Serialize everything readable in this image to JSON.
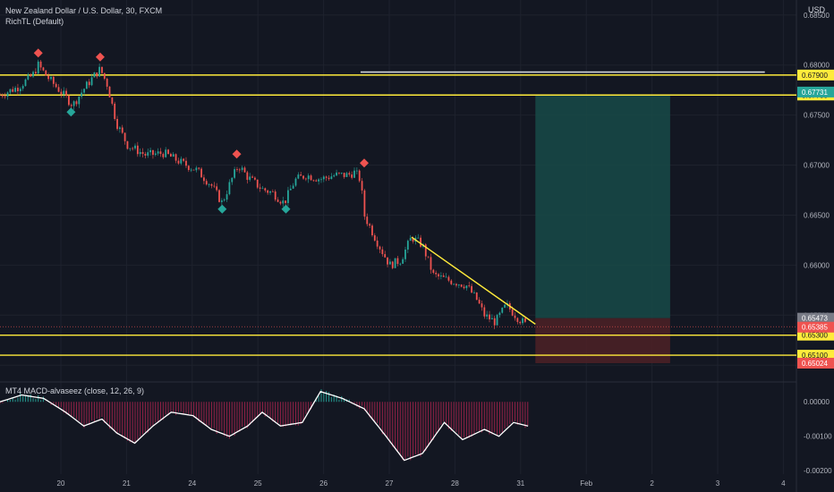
{
  "header": {
    "symbol_title": "New Zealand Dollar / U.S. Dollar, 30, FXCM",
    "indicator": "RichTL (Default)",
    "currency": "USD"
  },
  "oscillator": {
    "legend": "MT4 MACD-alvaseez (close, 12, 26, 9)"
  },
  "colors": {
    "background": "#131722",
    "grid": "#1e222d",
    "up": "#26a69a",
    "down": "#ef5350",
    "level_line": "#ffeb3b",
    "profit_zone": "#184a48",
    "loss_zone": "#4a2026",
    "pivot_high": "#ef5350",
    "pivot_low": "#26a69a"
  },
  "chart_data": {
    "type": "candlestick",
    "ylim": [
      0.6485,
      0.6865
    ],
    "y_ticks": [
      "0.68500",
      "0.68000",
      "0.67500",
      "0.67000",
      "0.66500",
      "0.66000",
      "0.65500",
      "0.65000"
    ],
    "x_ticks": [
      "20",
      "21",
      "24",
      "25",
      "26",
      "27",
      "28",
      "31",
      "Feb",
      "2",
      "3",
      "4"
    ],
    "horizontal_levels": [
      {
        "value": 0.679,
        "label": "0.67900"
      },
      {
        "value": 0.677,
        "label": "0.67700"
      },
      {
        "value": 0.653,
        "label": "0.65300"
      },
      {
        "value": 0.651,
        "label": "0.65100"
      }
    ],
    "price_labels": [
      {
        "value": 0.6773,
        "label": "0.67731",
        "color": "#26a69a"
      },
      {
        "value": 0.6547,
        "label": "0.65473",
        "color": "#787b86"
      },
      {
        "value": 0.6538,
        "label": "0.65385",
        "color": "#ef5350"
      },
      {
        "value": 0.6502,
        "label": "0.65024",
        "color": "#ef5350"
      }
    ],
    "price_path": [
      [
        0.0,
        0.677
      ],
      [
        0.5,
        0.6778
      ],
      [
        0.9,
        0.679
      ],
      [
        1.05,
        0.68
      ],
      [
        1.3,
        0.6788
      ],
      [
        1.7,
        0.6772
      ],
      [
        2.0,
        0.676
      ],
      [
        2.3,
        0.6776
      ],
      [
        2.6,
        0.679
      ],
      [
        2.75,
        0.6796
      ],
      [
        2.95,
        0.678
      ],
      [
        3.2,
        0.6742
      ],
      [
        3.5,
        0.672
      ],
      [
        4.0,
        0.671
      ],
      [
        4.5,
        0.6712
      ],
      [
        5.0,
        0.6702
      ],
      [
        5.4,
        0.6695
      ],
      [
        5.8,
        0.668
      ],
      [
        6.1,
        0.6662
      ],
      [
        6.35,
        0.6685
      ],
      [
        6.55,
        0.67
      ],
      [
        6.8,
        0.6688
      ],
      [
        7.2,
        0.6676
      ],
      [
        7.5,
        0.6672
      ],
      [
        7.8,
        0.6662
      ],
      [
        8.1,
        0.6685
      ],
      [
        8.4,
        0.669
      ],
      [
        8.8,
        0.6686
      ],
      [
        9.2,
        0.669
      ],
      [
        9.55,
        0.669
      ],
      [
        9.75,
        0.6693
      ],
      [
        9.9,
        0.6685
      ],
      [
        10.0,
        0.665
      ],
      [
        10.4,
        0.662
      ],
      [
        10.7,
        0.66
      ],
      [
        11.0,
        0.6605
      ],
      [
        11.3,
        0.6628
      ],
      [
        11.6,
        0.662
      ],
      [
        11.9,
        0.659
      ],
      [
        12.3,
        0.6585
      ],
      [
        12.8,
        0.658
      ],
      [
        13.1,
        0.6565
      ],
      [
        13.3,
        0.655
      ],
      [
        13.6,
        0.6543
      ],
      [
        13.9,
        0.656
      ],
      [
        14.2,
        0.6548
      ],
      [
        14.45,
        0.654
      ]
    ],
    "pivot_highs": [
      [
        1.05,
        0.6812
      ],
      [
        2.75,
        0.6808
      ],
      [
        6.5,
        0.6711
      ],
      [
        10.0,
        0.6702
      ]
    ],
    "pivot_lows": [
      [
        1.95,
        0.6753
      ],
      [
        6.1,
        0.6656
      ],
      [
        7.85,
        0.6656
      ]
    ],
    "trendlines": [
      {
        "x1": 11.3,
        "y1": 0.6628,
        "x2": 14.7,
        "y2": 0.6541
      },
      {
        "x1": 9.9,
        "y1": 0.6793,
        "x2": 21.0,
        "y2": 0.6793
      }
    ],
    "position": {
      "entry": 0.6547,
      "target": 0.677,
      "stop": 0.6502,
      "x_start": 14.7,
      "x_end": 18.4
    },
    "macd": {
      "ylim": [
        -0.0021,
        0.0005
      ],
      "y_ticks": [
        "0.00000",
        "-0.00100",
        "-0.00200"
      ],
      "signal_path": [
        [
          0.0,
          0.0
        ],
        [
          0.6,
          0.0002
        ],
        [
          1.2,
          0.0001
        ],
        [
          1.8,
          -0.0003
        ],
        [
          2.3,
          -0.0007
        ],
        [
          2.8,
          -0.0005
        ],
        [
          3.2,
          -0.0009
        ],
        [
          3.7,
          -0.0012
        ],
        [
          4.2,
          -0.0007
        ],
        [
          4.7,
          -0.0003
        ],
        [
          5.3,
          -0.0004
        ],
        [
          5.8,
          -0.0008
        ],
        [
          6.3,
          -0.001
        ],
        [
          6.8,
          -0.0007
        ],
        [
          7.2,
          -0.0003
        ],
        [
          7.7,
          -0.0007
        ],
        [
          8.3,
          -0.0006
        ],
        [
          8.8,
          0.0003
        ],
        [
          9.4,
          0.0001
        ],
        [
          10.0,
          -0.0002
        ],
        [
          10.6,
          -0.001
        ],
        [
          11.1,
          -0.0017
        ],
        [
          11.6,
          -0.0015
        ],
        [
          12.2,
          -0.0006
        ],
        [
          12.7,
          -0.0011
        ],
        [
          13.3,
          -0.0008
        ],
        [
          13.7,
          -0.001
        ],
        [
          14.1,
          -0.0006
        ],
        [
          14.5,
          -0.0007
        ]
      ]
    }
  }
}
